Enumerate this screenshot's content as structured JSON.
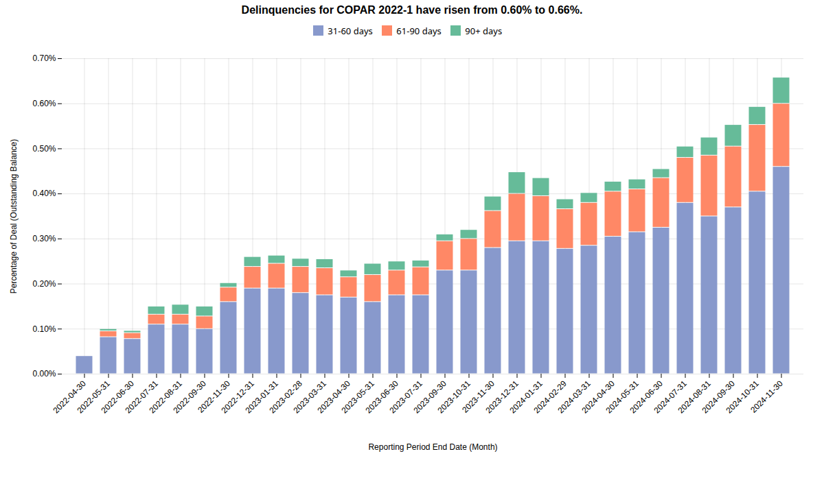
{
  "chart_data": {
    "type": "bar",
    "title": "Delinquencies for COPAR 2022-1 have risen from 0.60% to 0.66%.",
    "xlabel": "Reporting Period End Date (Month)",
    "ylabel": "Percentage of Deal (Outstanding Balance)",
    "stacked": true,
    "grid": true,
    "legend": "top",
    "categories": [
      "2022-04-30",
      "2022-05-31",
      "2022-06-30",
      "2022-07-31",
      "2022-08-31",
      "2022-09-30",
      "2022-11-30",
      "2022-12-31",
      "2023-01-31",
      "2023-02-28",
      "2023-03-31",
      "2023-04-30",
      "2023-05-31",
      "2023-06-30",
      "2023-07-31",
      "2023-09-30",
      "2023-10-31",
      "2023-11-30",
      "2023-12-31",
      "2024-01-31",
      "2024-02-29",
      "2024-03-31",
      "2024-04-30",
      "2024-05-31",
      "2024-06-30",
      "2024-07-31",
      "2024-08-31",
      "2024-09-30",
      "2024-10-31",
      "2024-11-30"
    ],
    "series": [
      {
        "name": "31-60 days",
        "color": "#8899cc",
        "values": [
          0.0004,
          0.00082,
          0.00078,
          0.0011,
          0.0011,
          0.001,
          0.0016,
          0.0019,
          0.0019,
          0.0018,
          0.00175,
          0.0017,
          0.0016,
          0.00175,
          0.00175,
          0.0023,
          0.0023,
          0.0028,
          0.00295,
          0.00295,
          0.00278,
          0.00285,
          0.00305,
          0.00315,
          0.00325,
          0.0038,
          0.0035,
          0.0037,
          0.00405,
          0.0046
        ]
      },
      {
        "name": "61-90 days",
        "color": "#ff8866",
        "values": [
          0.0,
          0.00013,
          0.00013,
          0.00022,
          0.00022,
          0.00028,
          0.00032,
          0.00048,
          0.00055,
          0.00058,
          0.0006,
          0.00045,
          0.0006,
          0.00055,
          0.00062,
          0.00065,
          0.0007,
          0.00082,
          0.00105,
          0.001,
          0.00088,
          0.00095,
          0.001,
          0.00095,
          0.0011,
          0.001,
          0.00135,
          0.00135,
          0.00148,
          0.0014
        ]
      },
      {
        "name": "90+ days",
        "color": "#66bb99",
        "values": [
          0.0,
          5e-05,
          5e-05,
          0.00018,
          0.00022,
          0.00022,
          0.0001,
          0.00022,
          0.00018,
          0.00018,
          0.0002,
          0.00015,
          0.00025,
          0.0002,
          0.00015,
          0.00015,
          0.0002,
          0.00032,
          0.00048,
          0.0004,
          0.00022,
          0.00022,
          0.00022,
          0.00022,
          0.0002,
          0.00025,
          0.0004,
          0.00048,
          0.0004,
          0.00058
        ]
      }
    ],
    "ylim": [
      0.0,
      0.007
    ],
    "yticks": [
      {
        "value": 0.0,
        "label": "0.00%"
      },
      {
        "value": 0.001,
        "label": "0.10%"
      },
      {
        "value": 0.002,
        "label": "0.20%"
      },
      {
        "value": 0.003,
        "label": "0.30%"
      },
      {
        "value": 0.004,
        "label": "0.40%"
      },
      {
        "value": 0.005,
        "label": "0.50%"
      },
      {
        "value": 0.006,
        "label": "0.60%"
      },
      {
        "value": 0.007,
        "label": "0.70%"
      }
    ]
  }
}
